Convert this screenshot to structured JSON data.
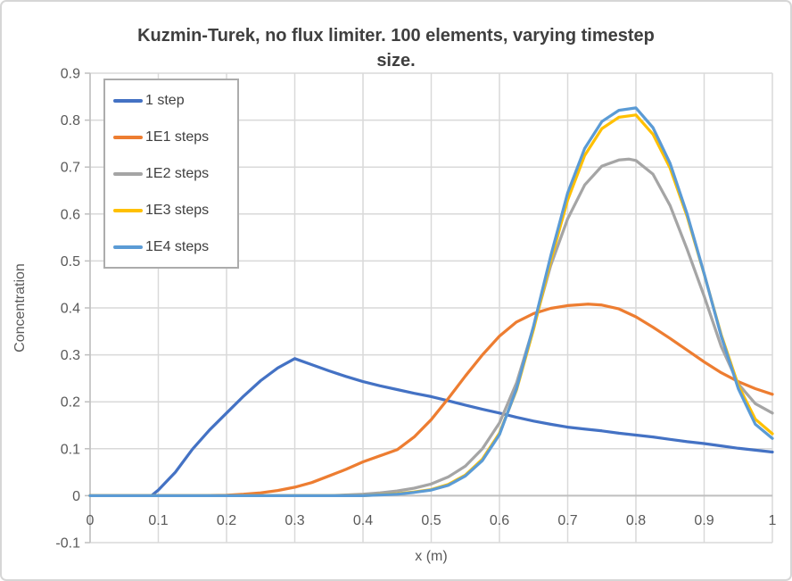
{
  "chart": {
    "title_line1": "Kuzmin-Turek, no flux limiter. 100 elements, varying timestep",
    "title_line2": "size."
  },
  "styles": {
    "background": "#FFFFFF",
    "frame_border_color": "#D6D6D6",
    "grid_color": "#D9D9D9",
    "axis_color": "#BFBFBF",
    "tick_label_color": "#595959",
    "axis_title_color": "#595959",
    "title_color": "#3F3F3F",
    "legend_border_color": "#ACACAC",
    "line_width": 3.25
  },
  "legend": {
    "items": [
      {
        "label": "1 step",
        "color": "#4472C4"
      },
      {
        "label": "1E1 steps",
        "color": "#ED7D31"
      },
      {
        "label": "1E2 steps",
        "color": "#A5A5A5"
      },
      {
        "label": "1E3 steps",
        "color": "#FFC000"
      },
      {
        "label": "1E4 steps",
        "color": "#5B9BD5"
      }
    ]
  },
  "chart_data": {
    "type": "line",
    "title": "Kuzmin-Turek, no flux limiter. 100 elements, varying timestep size.",
    "xlabel": "x (m)",
    "ylabel": "Concentration",
    "xlim": [
      0,
      1
    ],
    "ylim": [
      -0.1,
      0.9
    ],
    "x_ticks": [
      0,
      0.1,
      0.2,
      0.3,
      0.4,
      0.5,
      0.6,
      0.7,
      0.8,
      0.9,
      1
    ],
    "x_tick_labels": [
      "0",
      "0.1",
      "0.2",
      "0.3",
      "0.4",
      "0.5",
      "0.6",
      "0.7",
      "0.8",
      "0.9",
      "1"
    ],
    "y_ticks": [
      -0.1,
      0,
      0.1,
      0.2,
      0.3,
      0.4,
      0.5,
      0.6,
      0.7,
      0.8,
      0.9
    ],
    "y_tick_labels": [
      "-0.1",
      "0",
      "0.1",
      "0.2",
      "0.3",
      "0.4",
      "0.5",
      "0.6",
      "0.7",
      "0.8",
      "0.9"
    ],
    "grid": true,
    "legend_position": "top-left-inside",
    "series": [
      {
        "name": "1 step",
        "color": "#4472C4",
        "points": [
          [
            0,
            0
          ],
          [
            0.05,
            0
          ],
          [
            0.09,
            0
          ],
          [
            0.1,
            0.012
          ],
          [
            0.125,
            0.05
          ],
          [
            0.15,
            0.099
          ],
          [
            0.175,
            0.14
          ],
          [
            0.2,
            0.176
          ],
          [
            0.225,
            0.212
          ],
          [
            0.25,
            0.245
          ],
          [
            0.275,
            0.272
          ],
          [
            0.3,
            0.292
          ],
          [
            0.325,
            0.279
          ],
          [
            0.35,
            0.266
          ],
          [
            0.375,
            0.254
          ],
          [
            0.4,
            0.243
          ],
          [
            0.425,
            0.234
          ],
          [
            0.45,
            0.226
          ],
          [
            0.475,
            0.218
          ],
          [
            0.5,
            0.211
          ],
          [
            0.525,
            0.202
          ],
          [
            0.55,
            0.193
          ],
          [
            0.575,
            0.184
          ],
          [
            0.6,
            0.176
          ],
          [
            0.625,
            0.167
          ],
          [
            0.65,
            0.159
          ],
          [
            0.675,
            0.152
          ],
          [
            0.7,
            0.146
          ],
          [
            0.725,
            0.142
          ],
          [
            0.75,
            0.138
          ],
          [
            0.775,
            0.133
          ],
          [
            0.8,
            0.129
          ],
          [
            0.825,
            0.125
          ],
          [
            0.85,
            0.12
          ],
          [
            0.875,
            0.115
          ],
          [
            0.9,
            0.111
          ],
          [
            0.925,
            0.106
          ],
          [
            0.95,
            0.101
          ],
          [
            0.975,
            0.097
          ],
          [
            1,
            0.093
          ]
        ]
      },
      {
        "name": "1E1 steps",
        "color": "#ED7D31",
        "points": [
          [
            0,
            0
          ],
          [
            0.15,
            0
          ],
          [
            0.2,
            0.001
          ],
          [
            0.225,
            0.003
          ],
          [
            0.25,
            0.006
          ],
          [
            0.275,
            0.011
          ],
          [
            0.3,
            0.018
          ],
          [
            0.325,
            0.028
          ],
          [
            0.35,
            0.042
          ],
          [
            0.375,
            0.056
          ],
          [
            0.4,
            0.072
          ],
          [
            0.425,
            0.085
          ],
          [
            0.45,
            0.098
          ],
          [
            0.475,
            0.125
          ],
          [
            0.5,
            0.162
          ],
          [
            0.525,
            0.207
          ],
          [
            0.55,
            0.255
          ],
          [
            0.575,
            0.3
          ],
          [
            0.6,
            0.34
          ],
          [
            0.625,
            0.37
          ],
          [
            0.65,
            0.388
          ],
          [
            0.675,
            0.399
          ],
          [
            0.7,
            0.405
          ],
          [
            0.73,
            0.408
          ],
          [
            0.75,
            0.406
          ],
          [
            0.775,
            0.398
          ],
          [
            0.8,
            0.381
          ],
          [
            0.825,
            0.359
          ],
          [
            0.85,
            0.335
          ],
          [
            0.875,
            0.31
          ],
          [
            0.9,
            0.285
          ],
          [
            0.925,
            0.262
          ],
          [
            0.95,
            0.243
          ],
          [
            0.975,
            0.228
          ],
          [
            1,
            0.216
          ]
        ]
      },
      {
        "name": "1E2 steps",
        "color": "#A5A5A5",
        "points": [
          [
            0,
            0
          ],
          [
            0.35,
            0
          ],
          [
            0.4,
            0.003
          ],
          [
            0.425,
            0.006
          ],
          [
            0.45,
            0.01
          ],
          [
            0.475,
            0.016
          ],
          [
            0.5,
            0.025
          ],
          [
            0.525,
            0.04
          ],
          [
            0.55,
            0.063
          ],
          [
            0.575,
            0.1
          ],
          [
            0.6,
            0.155
          ],
          [
            0.625,
            0.24
          ],
          [
            0.65,
            0.36
          ],
          [
            0.675,
            0.49
          ],
          [
            0.7,
            0.59
          ],
          [
            0.725,
            0.662
          ],
          [
            0.75,
            0.702
          ],
          [
            0.775,
            0.715
          ],
          [
            0.79,
            0.717
          ],
          [
            0.8,
            0.714
          ],
          [
            0.825,
            0.685
          ],
          [
            0.85,
            0.618
          ],
          [
            0.875,
            0.525
          ],
          [
            0.9,
            0.425
          ],
          [
            0.925,
            0.318
          ],
          [
            0.95,
            0.238
          ],
          [
            0.975,
            0.196
          ],
          [
            1,
            0.176
          ]
        ]
      },
      {
        "name": "1E3 steps",
        "color": "#FFC000",
        "points": [
          [
            0,
            0
          ],
          [
            0.4,
            0
          ],
          [
            0.45,
            0.004
          ],
          [
            0.475,
            0.008
          ],
          [
            0.5,
            0.013
          ],
          [
            0.525,
            0.024
          ],
          [
            0.55,
            0.044
          ],
          [
            0.575,
            0.078
          ],
          [
            0.6,
            0.133
          ],
          [
            0.625,
            0.225
          ],
          [
            0.65,
            0.355
          ],
          [
            0.675,
            0.5
          ],
          [
            0.7,
            0.63
          ],
          [
            0.725,
            0.725
          ],
          [
            0.75,
            0.782
          ],
          [
            0.775,
            0.806
          ],
          [
            0.8,
            0.811
          ],
          [
            0.825,
            0.77
          ],
          [
            0.85,
            0.698
          ],
          [
            0.875,
            0.595
          ],
          [
            0.9,
            0.472
          ],
          [
            0.925,
            0.343
          ],
          [
            0.95,
            0.235
          ],
          [
            0.975,
            0.163
          ],
          [
            1,
            0.132
          ]
        ]
      },
      {
        "name": "1E4 steps",
        "color": "#5B9BD5",
        "points": [
          [
            0,
            0
          ],
          [
            0.4,
            0
          ],
          [
            0.45,
            0.003
          ],
          [
            0.475,
            0.007
          ],
          [
            0.5,
            0.012
          ],
          [
            0.525,
            0.022
          ],
          [
            0.55,
            0.042
          ],
          [
            0.575,
            0.075
          ],
          [
            0.6,
            0.13
          ],
          [
            0.625,
            0.228
          ],
          [
            0.65,
            0.362
          ],
          [
            0.675,
            0.51
          ],
          [
            0.7,
            0.645
          ],
          [
            0.725,
            0.74
          ],
          [
            0.75,
            0.797
          ],
          [
            0.775,
            0.821
          ],
          [
            0.8,
            0.826
          ],
          [
            0.825,
            0.784
          ],
          [
            0.85,
            0.708
          ],
          [
            0.875,
            0.6
          ],
          [
            0.9,
            0.473
          ],
          [
            0.925,
            0.34
          ],
          [
            0.95,
            0.228
          ],
          [
            0.975,
            0.152
          ],
          [
            1,
            0.122
          ]
        ]
      }
    ]
  }
}
